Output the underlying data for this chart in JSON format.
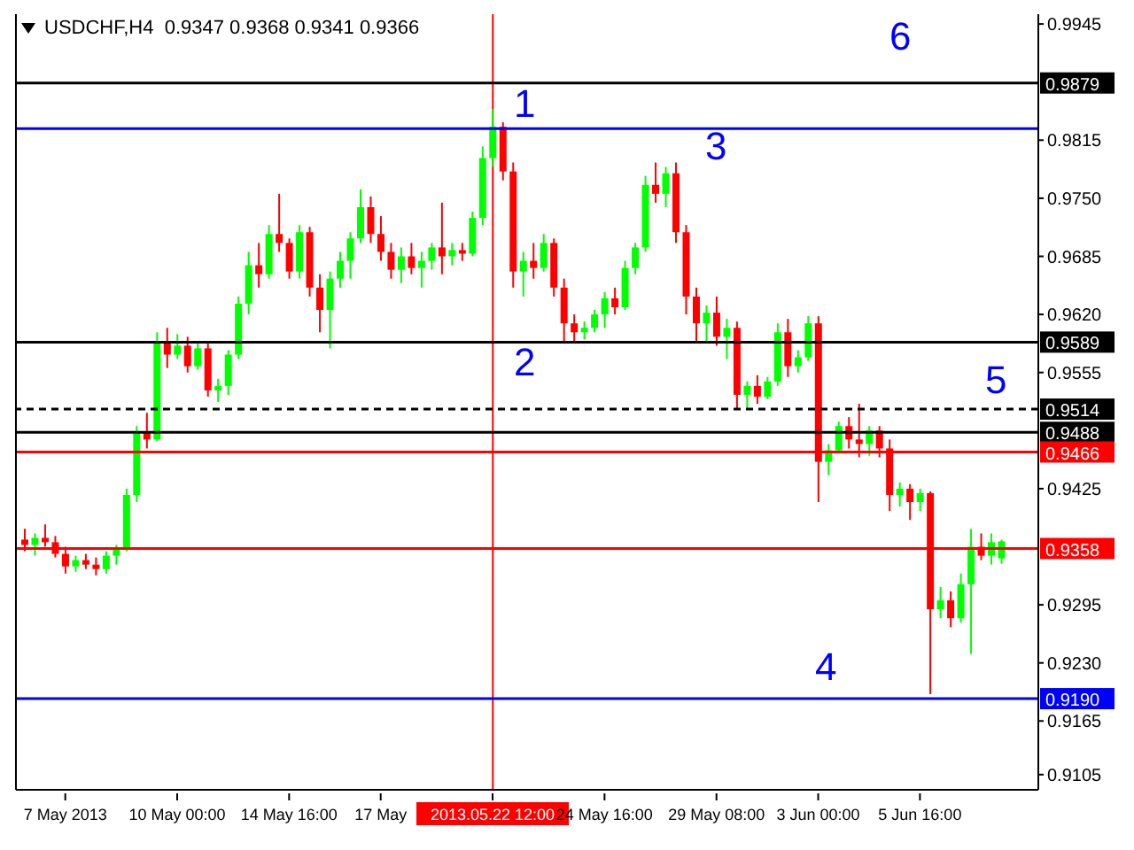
{
  "chart_data": {
    "type": "candlestick",
    "title": "USDCHF,H4  0.9347 0.9368 0.9341 0.9366",
    "categories": [
      null,
      null,
      null,
      null,
      "7 May 2013",
      null,
      null,
      null,
      null,
      null,
      null,
      null,
      null,
      null,
      null,
      "10 May 00:00",
      null,
      null,
      null,
      null,
      null,
      null,
      null,
      null,
      null,
      null,
      "14 May 16:00",
      null,
      null,
      null,
      null,
      null,
      null,
      null,
      null,
      "17 May",
      null,
      null,
      null,
      null,
      null,
      null,
      null,
      null,
      null,
      null,
      "2013.05.22 12:00",
      null,
      null,
      null,
      null,
      null,
      null,
      null,
      null,
      null,
      null,
      "24 May 16:00",
      null,
      null,
      null,
      null,
      null,
      null,
      null,
      null,
      null,
      null,
      "29 May 08:00",
      null,
      null,
      null,
      null,
      null,
      null,
      null,
      null,
      null,
      "3 Jun 00:00",
      null,
      null,
      null,
      null,
      null,
      null,
      null,
      null,
      null,
      "5 Jun 16:00",
      null,
      null,
      null,
      null,
      null,
      null,
      null,
      null
    ],
    "ohlc": [
      [
        0.9368,
        0.938,
        0.9355,
        0.9362
      ],
      [
        0.9362,
        0.9375,
        0.935,
        0.937
      ],
      [
        0.937,
        0.9385,
        0.936,
        0.9365
      ],
      [
        0.9365,
        0.9372,
        0.9348,
        0.9352
      ],
      [
        0.9352,
        0.936,
        0.933,
        0.9338
      ],
      [
        0.9338,
        0.935,
        0.9332,
        0.9345
      ],
      [
        0.9345,
        0.9352,
        0.9335,
        0.934
      ],
      [
        0.934,
        0.9348,
        0.9328,
        0.9335
      ],
      [
        0.9335,
        0.9355,
        0.933,
        0.935
      ],
      [
        0.935,
        0.9362,
        0.934,
        0.9358
      ],
      [
        0.9358,
        0.9425,
        0.9355,
        0.9418
      ],
      [
        0.9418,
        0.9495,
        0.941,
        0.9488
      ],
      [
        0.9488,
        0.951,
        0.947,
        0.948
      ],
      [
        0.948,
        0.96,
        0.9478,
        0.959
      ],
      [
        0.959,
        0.9605,
        0.956,
        0.9575
      ],
      [
        0.9575,
        0.9598,
        0.957,
        0.9585
      ],
      [
        0.9585,
        0.9595,
        0.9555,
        0.9562
      ],
      [
        0.9562,
        0.959,
        0.9558,
        0.9582
      ],
      [
        0.9582,
        0.9588,
        0.9528,
        0.9535
      ],
      [
        0.9535,
        0.9548,
        0.9522,
        0.954
      ],
      [
        0.954,
        0.958,
        0.953,
        0.9575
      ],
      [
        0.9575,
        0.964,
        0.957,
        0.9632
      ],
      [
        0.9632,
        0.969,
        0.962,
        0.9675
      ],
      [
        0.9675,
        0.97,
        0.965,
        0.9665
      ],
      [
        0.9665,
        0.972,
        0.966,
        0.971
      ],
      [
        0.971,
        0.9755,
        0.969,
        0.97
      ],
      [
        0.97,
        0.9705,
        0.966,
        0.9668
      ],
      [
        0.9668,
        0.972,
        0.966,
        0.9712
      ],
      [
        0.9712,
        0.9718,
        0.964,
        0.965
      ],
      [
        0.965,
        0.9665,
        0.96,
        0.9625
      ],
      [
        0.9625,
        0.9668,
        0.9582,
        0.966
      ],
      [
        0.966,
        0.969,
        0.965,
        0.968
      ],
      [
        0.968,
        0.9712,
        0.966,
        0.9705
      ],
      [
        0.9705,
        0.976,
        0.97,
        0.974
      ],
      [
        0.974,
        0.9752,
        0.97,
        0.971
      ],
      [
        0.971,
        0.973,
        0.968,
        0.969
      ],
      [
        0.969,
        0.97,
        0.966,
        0.967
      ],
      [
        0.967,
        0.9695,
        0.9655,
        0.9685
      ],
      [
        0.9685,
        0.97,
        0.9665,
        0.9672
      ],
      [
        0.9672,
        0.969,
        0.965,
        0.968
      ],
      [
        0.968,
        0.97,
        0.967,
        0.9695
      ],
      [
        0.9695,
        0.9745,
        0.9665,
        0.9685
      ],
      [
        0.9685,
        0.97,
        0.9675,
        0.9692
      ],
      [
        0.9692,
        0.97,
        0.968,
        0.9688
      ],
      [
        0.9688,
        0.9735,
        0.9685,
        0.9728
      ],
      [
        0.9728,
        0.9808,
        0.972,
        0.9795
      ],
      [
        0.9795,
        0.985,
        0.9785,
        0.983
      ],
      [
        0.983,
        0.9835,
        0.977,
        0.978
      ],
      [
        0.978,
        0.979,
        0.965,
        0.9668
      ],
      [
        0.9668,
        0.969,
        0.964,
        0.968
      ],
      [
        0.968,
        0.97,
        0.966,
        0.9672
      ],
      [
        0.9672,
        0.971,
        0.9668,
        0.97
      ],
      [
        0.97,
        0.9705,
        0.964,
        0.965
      ],
      [
        0.965,
        0.966,
        0.959,
        0.961
      ],
      [
        0.961,
        0.962,
        0.959,
        0.96
      ],
      [
        0.96,
        0.9612,
        0.9592,
        0.9605
      ],
      [
        0.9605,
        0.9625,
        0.96,
        0.962
      ],
      [
        0.962,
        0.9645,
        0.9605,
        0.9638
      ],
      [
        0.9638,
        0.965,
        0.962,
        0.9628
      ],
      [
        0.9628,
        0.968,
        0.9625,
        0.9672
      ],
      [
        0.9672,
        0.97,
        0.9665,
        0.9695
      ],
      [
        0.9695,
        0.9775,
        0.969,
        0.9765
      ],
      [
        0.9765,
        0.979,
        0.9745,
        0.9755
      ],
      [
        0.9755,
        0.9785,
        0.974,
        0.9778
      ],
      [
        0.9778,
        0.979,
        0.97,
        0.9712
      ],
      [
        0.9712,
        0.972,
        0.962,
        0.964
      ],
      [
        0.964,
        0.965,
        0.959,
        0.961
      ],
      [
        0.961,
        0.963,
        0.959,
        0.9622
      ],
      [
        0.9622,
        0.964,
        0.9585,
        0.9595
      ],
      [
        0.9595,
        0.9615,
        0.957,
        0.9605
      ],
      [
        0.9605,
        0.9612,
        0.9515,
        0.953
      ],
      [
        0.953,
        0.9545,
        0.9515,
        0.954
      ],
      [
        0.954,
        0.9552,
        0.952,
        0.9528
      ],
      [
        0.9528,
        0.955,
        0.9525,
        0.9545
      ],
      [
        0.9545,
        0.961,
        0.954,
        0.96
      ],
      [
        0.96,
        0.9615,
        0.955,
        0.9562
      ],
      [
        0.9562,
        0.958,
        0.9555,
        0.9572
      ],
      [
        0.9572,
        0.9618,
        0.9568,
        0.961
      ],
      [
        0.961,
        0.9618,
        0.941,
        0.9455
      ],
      [
        0.9455,
        0.9475,
        0.944,
        0.9468
      ],
      [
        0.9468,
        0.95,
        0.9465,
        0.9495
      ],
      [
        0.9495,
        0.9505,
        0.947,
        0.948
      ],
      [
        0.948,
        0.952,
        0.946,
        0.9475
      ],
      [
        0.9475,
        0.9495,
        0.9462,
        0.949
      ],
      [
        0.949,
        0.9495,
        0.946,
        0.947
      ],
      [
        0.947,
        0.948,
        0.94,
        0.9418
      ],
      [
        0.9418,
        0.9432,
        0.9405,
        0.9425
      ],
      [
        0.9425,
        0.943,
        0.939,
        0.941
      ],
      [
        0.941,
        0.9425,
        0.94,
        0.942
      ],
      [
        0.942,
        0.9422,
        0.9195,
        0.929
      ],
      [
        0.929,
        0.9315,
        0.928,
        0.93
      ],
      [
        0.93,
        0.931,
        0.927,
        0.928
      ],
      [
        0.928,
        0.933,
        0.9275,
        0.9318
      ],
      [
        0.9318,
        0.938,
        0.924,
        0.936
      ],
      [
        0.936,
        0.9375,
        0.9345,
        0.935
      ],
      [
        0.935,
        0.9375,
        0.934,
        0.9365
      ],
      [
        0.9347,
        0.9368,
        0.9341,
        0.9366
      ]
    ],
    "colors": [
      "#ff0000",
      "#00ff00",
      "#ff0000",
      "#ff0000",
      "#ff0000",
      "#00ff00",
      "#ff0000",
      "#ff0000",
      "#00ff00",
      "#00ff00",
      "#00ff00",
      "#00ff00",
      "#ff0000",
      "#00ff00",
      "#ff0000",
      "#00ff00",
      "#ff0000",
      "#00ff00",
      "#ff0000",
      "#00ff00",
      "#00ff00",
      "#00ff00",
      "#00ff00",
      "#ff0000",
      "#00ff00",
      "#ff0000",
      "#ff0000",
      "#00ff00",
      "#ff0000",
      "#ff0000",
      "#00ff00",
      "#00ff00",
      "#00ff00",
      "#00ff00",
      "#ff0000",
      "#ff0000",
      "#ff0000",
      "#00ff00",
      "#ff0000",
      "#00ff00",
      "#00ff00",
      "#ff0000",
      "#00ff00",
      "#ff0000",
      "#00ff00",
      "#00ff00",
      "#00ff00",
      "#ff0000",
      "#ff0000",
      "#00ff00",
      "#ff0000",
      "#00ff00",
      "#ff0000",
      "#ff0000",
      "#ff0000",
      "#00ff00",
      "#00ff00",
      "#00ff00",
      "#ff0000",
      "#00ff00",
      "#00ff00",
      "#00ff00",
      "#ff0000",
      "#00ff00",
      "#ff0000",
      "#ff0000",
      "#ff0000",
      "#00ff00",
      "#ff0000",
      "#00ff00",
      "#ff0000",
      "#00ff00",
      "#ff0000",
      "#00ff00",
      "#00ff00",
      "#ff0000",
      "#00ff00",
      "#00ff00",
      "#ff0000",
      "#00ff00",
      "#00ff00",
      "#ff0000",
      "#ff0000",
      "#00ff00",
      "#ff0000",
      "#ff0000",
      "#00ff00",
      "#ff0000",
      "#00ff00",
      "#ff0000",
      "#00ff00",
      "#ff0000",
      "#00ff00",
      "#00ff00",
      "#ff0000",
      "#00ff00",
      "#00ff00"
    ],
    "ylim": [
      0.9088,
      0.9956
    ],
    "yticks": [
      {
        "value": 0.9945,
        "label": "0.9945"
      },
      {
        "value": 0.9815,
        "label": "0.9815"
      },
      {
        "value": 0.975,
        "label": "0.9750"
      },
      {
        "value": 0.9685,
        "label": "0.9685"
      },
      {
        "value": 0.962,
        "label": "0.9620"
      },
      {
        "value": 0.9555,
        "label": "0.9555"
      },
      {
        "value": 0.9425,
        "label": "0.9425"
      },
      {
        "value": 0.9295,
        "label": "0.9295"
      },
      {
        "value": 0.923,
        "label": "0.9230"
      },
      {
        "value": 0.9165,
        "label": "0.9165"
      },
      {
        "value": 0.9105,
        "label": "0.9105"
      }
    ],
    "ref_lines": [
      {
        "axis": "y",
        "value": 0.9879,
        "label": "0.9879",
        "color": "#000000",
        "line_style": "solid"
      },
      {
        "axis": "y",
        "value": 0.9828,
        "color": "#0000ff",
        "line_style": "solid"
      },
      {
        "axis": "y",
        "value": 0.9589,
        "label": "0.9589",
        "color": "#000000",
        "line_style": "solid"
      },
      {
        "axis": "y",
        "value": 0.9514,
        "label": "0.9514",
        "color": "#000000",
        "line_style": "dashed"
      },
      {
        "axis": "y",
        "value": 0.9488,
        "label": "0.9488",
        "color": "#000000",
        "line_style": "solid"
      },
      {
        "axis": "y",
        "value": 0.9466,
        "label": "0.9466",
        "color": "#ff0000",
        "line_style": "solid"
      },
      {
        "axis": "y",
        "value": 0.9358,
        "label": "0.9358",
        "color": "#ff0000",
        "line_style": "solid"
      },
      {
        "axis": "y",
        "value": 0.919,
        "label": "0.9190",
        "color": "#0000ff",
        "line_style": "solid"
      },
      {
        "axis": "x",
        "value": "2013.05.22 12:00",
        "color": "#ff0000",
        "line_style": "solid"
      }
    ],
    "annotations": [
      "1",
      "2",
      "3",
      "4",
      "5",
      "6"
    ]
  }
}
